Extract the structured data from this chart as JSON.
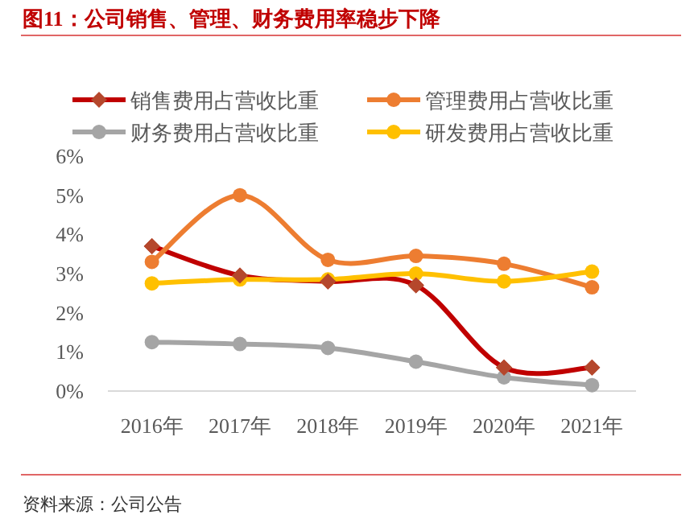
{
  "chart_data": {
    "type": "line",
    "title": "图11：公司销售、管理、财务费用率稳步下降",
    "categories": [
      "2016年",
      "2017年",
      "2018年",
      "2019年",
      "2020年",
      "2021年"
    ],
    "series": [
      {
        "name": "销售费用占营收比重",
        "color": "#c00000",
        "marker": "diamond",
        "values": [
          3.7,
          2.95,
          2.8,
          2.7,
          0.6,
          0.6
        ]
      },
      {
        "name": "管理费用占营收比重",
        "color": "#ed7d31",
        "marker": "circle",
        "values": [
          3.3,
          5.0,
          3.35,
          3.45,
          3.25,
          2.65
        ]
      },
      {
        "name": "财务费用占营收比重",
        "color": "#a5a5a5",
        "marker": "circle",
        "values": [
          1.25,
          1.2,
          1.1,
          0.75,
          0.35,
          0.15
        ]
      },
      {
        "name": "研发费用占营收比重",
        "color": "#ffc000",
        "marker": "circle",
        "values": [
          2.75,
          2.85,
          2.85,
          3.0,
          2.8,
          3.05
        ]
      }
    ],
    "ylim": [
      0,
      6
    ],
    "yticks": [
      {
        "value": 0,
        "label": "0%"
      },
      {
        "value": 1,
        "label": "1%"
      },
      {
        "value": 2,
        "label": "2%"
      },
      {
        "value": 3,
        "label": "3%"
      },
      {
        "value": 4,
        "label": "4%"
      },
      {
        "value": 5,
        "label": "5%"
      },
      {
        "value": 6,
        "label": "6%"
      }
    ],
    "legend": "top",
    "grid": false,
    "annotations": [
      "资料来源：公司公告"
    ]
  }
}
